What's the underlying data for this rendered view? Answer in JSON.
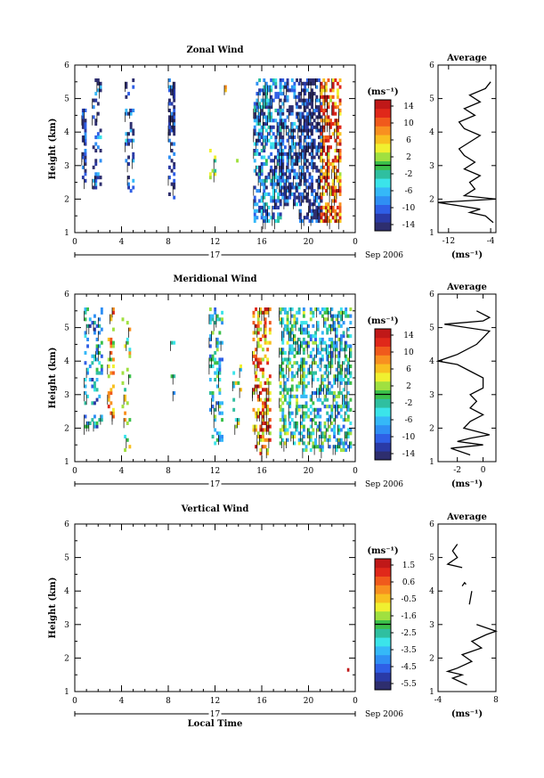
{
  "figure": {
    "date_label": "Sep 2006",
    "day_label": "17",
    "xlabel": "Local Time",
    "ylabel": "Height (km)",
    "avg_title": "Average",
    "unit_label": "(ms⁻¹)"
  },
  "chart_data": [
    {
      "type": "heatmap",
      "title": "Zonal Wind",
      "xlabel": "",
      "ylabel": "Height (km)",
      "xlim": [
        0,
        24
      ],
      "ylim": [
        1,
        6
      ],
      "xticks": [
        "0",
        "4",
        "8",
        "12",
        "16",
        "20",
        "0"
      ],
      "yticks": [
        "1",
        "2",
        "3",
        "4",
        "5",
        "6"
      ],
      "colorbar": {
        "ticks": [
          "14",
          "10",
          "6",
          "2",
          "-2",
          "-6",
          "-10",
          "-14"
        ],
        "range": [
          -16,
          16
        ]
      },
      "clusters": [
        {
          "t0": 0.6,
          "t1": 0.9,
          "h0": 2.5,
          "h1": 4.7,
          "mean": -14,
          "density": 0.6
        },
        {
          "t0": 1.5,
          "t1": 2.3,
          "h0": 2.3,
          "h1": 5.5,
          "mean": -12,
          "density": 0.35
        },
        {
          "t0": 4.3,
          "t1": 5.0,
          "h0": 2.2,
          "h1": 5.5,
          "mean": -12,
          "density": 0.25
        },
        {
          "t0": 8.0,
          "t1": 8.5,
          "h0": 2.0,
          "h1": 5.5,
          "mean": -14,
          "density": 0.55
        },
        {
          "t0": 11.5,
          "t1": 12.0,
          "h0": 2.6,
          "h1": 3.6,
          "mean": 4,
          "density": 0.1
        },
        {
          "t0": 12.8,
          "t1": 13.0,
          "h0": 5.1,
          "h1": 5.5,
          "mean": 12,
          "density": 0.6
        },
        {
          "t0": 13.8,
          "t1": 14.0,
          "h0": 3.0,
          "h1": 4.5,
          "mean": 8,
          "density": 0.1
        },
        {
          "t0": 15.3,
          "t1": 17.5,
          "h0": 1.3,
          "h1": 5.5,
          "mean": -8,
          "density": 0.55
        },
        {
          "t0": 17.5,
          "t1": 19.2,
          "h0": 1.8,
          "h1": 5.5,
          "mean": -12,
          "density": 0.55
        },
        {
          "t0": 19.2,
          "t1": 21.0,
          "h0": 1.3,
          "h1": 5.5,
          "mean": -14,
          "density": 0.6
        },
        {
          "t0": 21.0,
          "t1": 22.7,
          "h0": 1.3,
          "h1": 5.5,
          "mean": 10,
          "density": 0.55
        }
      ],
      "average": {
        "xlim": [
          -14,
          -3
        ],
        "xticks": [
          "-12",
          "-4"
        ],
        "profile": [
          [
            -3.5,
            1.3
          ],
          [
            -5,
            1.5
          ],
          [
            -8,
            1.6
          ],
          [
            -6,
            1.7
          ],
          [
            -10,
            1.8
          ],
          [
            -14,
            1.9
          ],
          [
            -3,
            2.0
          ],
          [
            -9,
            2.1
          ],
          [
            -7,
            2.3
          ],
          [
            -8,
            2.5
          ],
          [
            -6,
            2.7
          ],
          [
            -9,
            2.9
          ],
          [
            -7,
            3.1
          ],
          [
            -9,
            3.3
          ],
          [
            -10,
            3.5
          ],
          [
            -8,
            3.7
          ],
          [
            -6,
            3.9
          ],
          [
            -9,
            4.1
          ],
          [
            -10,
            4.3
          ],
          [
            -7,
            4.5
          ],
          [
            -9,
            4.7
          ],
          [
            -6,
            4.9
          ],
          [
            -8,
            5.1
          ],
          [
            -5,
            5.3
          ],
          [
            -4,
            5.5
          ]
        ]
      }
    },
    {
      "type": "heatmap",
      "title": "Meridional Wind",
      "xlabel": "",
      "ylabel": "Height (km)",
      "xlim": [
        0,
        24
      ],
      "ylim": [
        1,
        6
      ],
      "xticks": [
        "0",
        "4",
        "8",
        "12",
        "16",
        "20",
        "0"
      ],
      "yticks": [
        "1",
        "2",
        "3",
        "4",
        "5",
        "6"
      ],
      "colorbar": {
        "ticks": [
          "14",
          "10",
          "6",
          "2",
          "-2",
          "-6",
          "-10",
          "-14"
        ],
        "range": [
          -16,
          16
        ]
      },
      "clusters": [
        {
          "t0": 0.8,
          "t1": 2.3,
          "h0": 2.0,
          "h1": 5.5,
          "mean": -6,
          "density": 0.25
        },
        {
          "t0": 2.8,
          "t1": 3.3,
          "h0": 2.3,
          "h1": 5.5,
          "mean": 6,
          "density": 0.35
        },
        {
          "t0": 4.0,
          "t1": 4.8,
          "h0": 1.2,
          "h1": 5.2,
          "mean": 2,
          "density": 0.15
        },
        {
          "t0": 8.2,
          "t1": 8.5,
          "h0": 2.3,
          "h1": 4.8,
          "mean": -4,
          "density": 0.15
        },
        {
          "t0": 11.5,
          "t1": 12.5,
          "h0": 1.5,
          "h1": 5.5,
          "mean": -4,
          "density": 0.3
        },
        {
          "t0": 13.5,
          "t1": 14.2,
          "h0": 2.0,
          "h1": 4.0,
          "mean": 0,
          "density": 0.2
        },
        {
          "t0": 15.2,
          "t1": 16.7,
          "h0": 1.2,
          "h1": 5.5,
          "mean": 8,
          "density": 0.4
        },
        {
          "t0": 17.5,
          "t1": 19.5,
          "h0": 1.5,
          "h1": 5.5,
          "mean": -2,
          "density": 0.4
        },
        {
          "t0": 19.5,
          "t1": 23.5,
          "h0": 1.3,
          "h1": 5.5,
          "mean": -4,
          "density": 0.45
        }
      ],
      "average": {
        "xlim": [
          -3.5,
          1
        ],
        "xticks": [
          "-2",
          "0"
        ],
        "profile": [
          [
            -1,
            1.2
          ],
          [
            -2.5,
            1.4
          ],
          [
            0,
            1.5
          ],
          [
            -2,
            1.6
          ],
          [
            -1,
            1.7
          ],
          [
            0.5,
            1.8
          ],
          [
            -1.5,
            2.0
          ],
          [
            -1,
            2.2
          ],
          [
            0,
            2.4
          ],
          [
            -1,
            2.6
          ],
          [
            -0.5,
            2.8
          ],
          [
            -1,
            3.0
          ],
          [
            0,
            3.2
          ],
          [
            0,
            3.5
          ],
          [
            -1,
            3.7
          ],
          [
            -2,
            3.9
          ],
          [
            -3.5,
            4.0
          ],
          [
            -2,
            4.2
          ],
          [
            -0.5,
            4.5
          ],
          [
            0,
            4.7
          ],
          [
            0.5,
            4.9
          ],
          [
            -3,
            5.1
          ],
          [
            0,
            5.2
          ],
          [
            0.5,
            5.3
          ],
          [
            -0.5,
            5.5
          ]
        ]
      }
    },
    {
      "type": "heatmap",
      "title": "Vertical Wind",
      "xlabel": "Local Time",
      "ylabel": "Height (km)",
      "xlim": [
        0,
        24
      ],
      "ylim": [
        1,
        6
      ],
      "xticks": [
        "0",
        "4",
        "8",
        "12",
        "16",
        "20",
        "0"
      ],
      "yticks": [
        "1",
        "2",
        "3",
        "4",
        "5",
        "6"
      ],
      "colorbar": {
        "ticks": [
          "1.5",
          "0.6",
          "-0.5",
          "-1.6",
          "-2.5",
          "-3.5",
          "-4.5",
          "-5.5"
        ],
        "range": [
          -6,
          2
        ]
      },
      "cells": [
        {
          "t": 23.3,
          "h": 1.65,
          "v": 1.5
        }
      ],
      "average": {
        "xlim": [
          -4,
          8
        ],
        "xticks": [
          "-4",
          "8"
        ],
        "segments": [
          [
            [
              2,
              1.2
            ],
            [
              -1,
              1.4
            ],
            [
              1,
              1.5
            ],
            [
              -2,
              1.6
            ],
            [
              0,
              1.7
            ],
            [
              3,
              1.9
            ],
            [
              1,
              2.1
            ],
            [
              5,
              2.3
            ],
            [
              3,
              2.5
            ],
            [
              6,
              2.7
            ],
            [
              8,
              2.8
            ],
            [
              4,
              3.0
            ]
          ],
          [
            [
              2.5,
              3.6
            ],
            [
              3,
              4.0
            ]
          ],
          [
            [
              1,
              4.15
            ],
            [
              1.5,
              4.25
            ],
            [
              1.8,
              4.2
            ]
          ],
          [
            [
              1,
              4.7
            ],
            [
              -2,
              4.8
            ],
            [
              0,
              5.0
            ],
            [
              -1,
              5.2
            ],
            [
              0,
              5.4
            ]
          ]
        ]
      }
    }
  ]
}
